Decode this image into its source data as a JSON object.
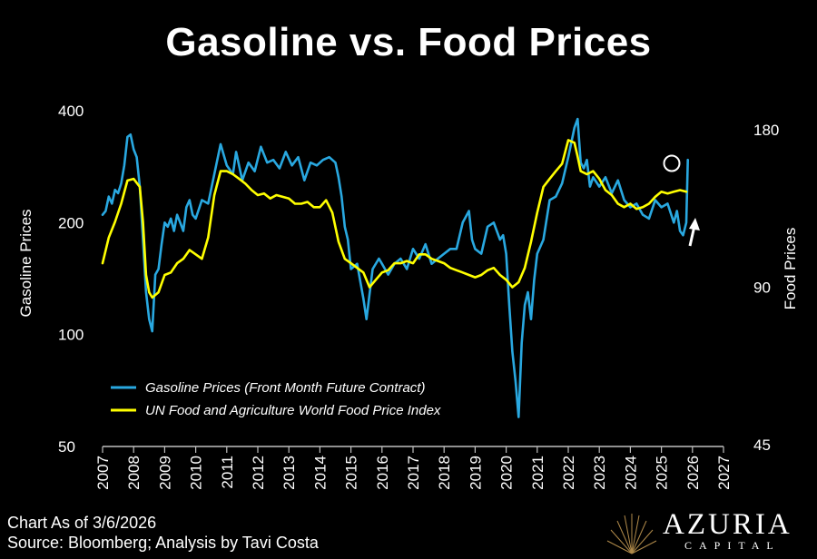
{
  "title": "Gasoline vs. Food Prices",
  "footer": {
    "line1": "Chart As of 3/6/2026",
    "line2": "Source: Bloomberg; Analysis by Tavi Costa"
  },
  "brand": {
    "name": "AZURIA",
    "sub": "CAPITAL",
    "logo_icon": "sunburst-logo-icon"
  },
  "colors": {
    "gasoline": "#29a8e0",
    "food": "#ffff00",
    "background": "#000000"
  },
  "chart_data": {
    "type": "line",
    "title": "Gasoline vs. Food Prices",
    "xlabel": "",
    "ylabel": "Gasoline Prices",
    "y2label": "Food Prices",
    "x_ticks": [
      "2007",
      "2008",
      "2009",
      "2010",
      "2011",
      "2012",
      "2013",
      "2014",
      "2015",
      "2016",
      "2017",
      "2018",
      "2019",
      "2020",
      "2021",
      "2022",
      "2023",
      "2024",
      "2025",
      "2026",
      "2027"
    ],
    "xlim": [
      2007,
      2027
    ],
    "y_left_ticks": [
      50,
      100,
      200,
      400
    ],
    "y_left_scale": "log",
    "ylim_left": [
      50,
      400
    ],
    "y_right_ticks": [
      45,
      90,
      180
    ],
    "y_right_scale": "log",
    "ylim_right": [
      45,
      180
    ],
    "legend_position": "bottom-left",
    "grid": false,
    "annotations": [
      "circle on latest gasoline spike",
      "upward arrow"
    ],
    "series": [
      {
        "name": "Gasoline Prices (Front Month Future Contract)",
        "axis": "left",
        "color": "#29a8e0",
        "x": [
          2007.0,
          2007.1,
          2007.2,
          2007.3,
          2007.4,
          2007.5,
          2007.6,
          2007.7,
          2007.8,
          2007.9,
          2008.0,
          2008.1,
          2008.2,
          2008.3,
          2008.4,
          2008.5,
          2008.6,
          2008.7,
          2008.8,
          2008.9,
          2009.0,
          2009.1,
          2009.2,
          2009.3,
          2009.4,
          2009.5,
          2009.6,
          2009.7,
          2009.8,
          2009.9,
          2010.0,
          2010.2,
          2010.4,
          2010.6,
          2010.8,
          2011.0,
          2011.2,
          2011.3,
          2011.5,
          2011.7,
          2011.9,
          2012.1,
          2012.3,
          2012.5,
          2012.7,
          2012.9,
          2013.1,
          2013.3,
          2013.5,
          2013.7,
          2013.9,
          2014.1,
          2014.3,
          2014.5,
          2014.6,
          2014.7,
          2014.8,
          2014.9,
          2015.0,
          2015.2,
          2015.4,
          2015.5,
          2015.7,
          2015.9,
          2016.0,
          2016.2,
          2016.4,
          2016.6,
          2016.8,
          2017.0,
          2017.2,
          2017.4,
          2017.6,
          2017.8,
          2018.0,
          2018.2,
          2018.4,
          2018.6,
          2018.8,
          2018.9,
          2019.0,
          2019.2,
          2019.4,
          2019.6,
          2019.8,
          2019.9,
          2020.0,
          2020.1,
          2020.2,
          2020.3,
          2020.4,
          2020.5,
          2020.6,
          2020.7,
          2020.8,
          2020.9,
          2021.0,
          2021.2,
          2021.4,
          2021.6,
          2021.8,
          2022.0,
          2022.2,
          2022.3,
          2022.4,
          2022.5,
          2022.6,
          2022.7,
          2022.8,
          2023.0,
          2023.2,
          2023.4,
          2023.6,
          2023.8,
          2024.0,
          2024.2,
          2024.4,
          2024.6,
          2024.8,
          2025.0,
          2025.2,
          2025.4,
          2025.5,
          2025.6,
          2025.7,
          2025.8,
          2025.85
        ],
        "values": [
          210,
          215,
          235,
          225,
          245,
          240,
          255,
          285,
          340,
          345,
          315,
          300,
          250,
          180,
          130,
          110,
          102,
          145,
          150,
          175,
          200,
          195,
          205,
          190,
          210,
          200,
          190,
          220,
          230,
          210,
          205,
          230,
          225,
          270,
          325,
          285,
          270,
          310,
          260,
          290,
          275,
          320,
          290,
          295,
          280,
          310,
          285,
          300,
          260,
          290,
          285,
          295,
          300,
          290,
          265,
          235,
          195,
          180,
          150,
          155,
          125,
          110,
          150,
          160,
          155,
          145,
          155,
          160,
          150,
          170,
          160,
          175,
          155,
          160,
          165,
          170,
          170,
          200,
          215,
          180,
          170,
          165,
          195,
          200,
          180,
          185,
          165,
          120,
          90,
          75,
          60,
          95,
          120,
          130,
          110,
          140,
          165,
          180,
          230,
          235,
          255,
          300,
          360,
          380,
          290,
          280,
          295,
          250,
          265,
          250,
          265,
          240,
          260,
          230,
          220,
          225,
          210,
          205,
          230,
          220,
          225,
          200,
          215,
          190,
          185,
          200,
          295
        ]
      },
      {
        "name": "UN Food and Agriculture World Food Price Index",
        "axis": "right",
        "color": "#ffff00",
        "x": [
          2007.0,
          2007.2,
          2007.4,
          2007.6,
          2007.8,
          2008.0,
          2008.2,
          2008.3,
          2008.4,
          2008.5,
          2008.6,
          2008.8,
          2009.0,
          2009.2,
          2009.4,
          2009.6,
          2009.8,
          2010.0,
          2010.2,
          2010.4,
          2010.6,
          2010.8,
          2011.0,
          2011.2,
          2011.4,
          2011.6,
          2011.8,
          2012.0,
          2012.2,
          2012.4,
          2012.6,
          2012.8,
          2013.0,
          2013.2,
          2013.4,
          2013.6,
          2013.8,
          2014.0,
          2014.2,
          2014.4,
          2014.6,
          2014.8,
          2015.0,
          2015.2,
          2015.4,
          2015.6,
          2015.8,
          2016.0,
          2016.2,
          2016.4,
          2016.6,
          2016.8,
          2017.0,
          2017.2,
          2017.4,
          2017.6,
          2017.8,
          2018.0,
          2018.2,
          2018.4,
          2018.6,
          2018.8,
          2019.0,
          2019.2,
          2019.4,
          2019.6,
          2019.8,
          2020.0,
          2020.2,
          2020.4,
          2020.6,
          2020.8,
          2021.0,
          2021.2,
          2021.4,
          2021.6,
          2021.8,
          2022.0,
          2022.2,
          2022.3,
          2022.4,
          2022.6,
          2022.8,
          2023.0,
          2023.2,
          2023.4,
          2023.6,
          2023.8,
          2024.0,
          2024.2,
          2024.4,
          2024.6,
          2024.8,
          2025.0,
          2025.2,
          2025.4,
          2025.6,
          2025.8
        ],
        "values": [
          100,
          112,
          120,
          130,
          144,
          145,
          140,
          120,
          95,
          88,
          86,
          88,
          95,
          96,
          100,
          102,
          106,
          104,
          102,
          112,
          135,
          150,
          150,
          148,
          145,
          142,
          138,
          135,
          136,
          133,
          135,
          134,
          133,
          130,
          130,
          131,
          128,
          128,
          132,
          125,
          110,
          102,
          100,
          98,
          96,
          90,
          93,
          96,
          97,
          100,
          100,
          101,
          100,
          104,
          104,
          102,
          101,
          100,
          98,
          97,
          96,
          95,
          94,
          95,
          97,
          98,
          95,
          93,
          90,
          92,
          98,
          110,
          125,
          140,
          145,
          150,
          155,
          172,
          170,
          160,
          150,
          148,
          150,
          145,
          138,
          135,
          130,
          128,
          130,
          127,
          128,
          130,
          134,
          137,
          136,
          137,
          138,
          137
        ]
      }
    ]
  }
}
